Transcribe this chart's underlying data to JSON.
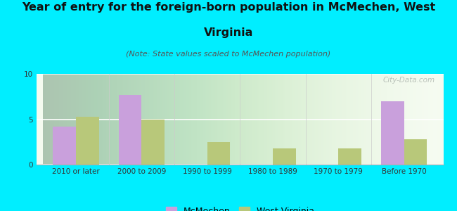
{
  "title_line1": "Year of entry for the foreign-born population in McMechen, West",
  "title_line2": "Virginia",
  "subtitle": "(Note: State values scaled to McMechen population)",
  "categories": [
    "2010 or later",
    "2000 to 2009",
    "1990 to 1999",
    "1980 to 1989",
    "1970 to 1979",
    "Before 1970"
  ],
  "mcmechen_values": [
    4.2,
    7.7,
    0,
    0,
    0,
    7.0
  ],
  "wv_values": [
    5.3,
    5.0,
    2.5,
    1.8,
    1.8,
    2.8
  ],
  "mcmechen_color": "#c9a0dc",
  "wv_color": "#b8c87a",
  "background_color": "#00eeff",
  "plot_bg_top": "#f0f8f0",
  "plot_bg_bottom": "#e0edd8",
  "ylim": [
    0,
    10
  ],
  "yticks": [
    0,
    5,
    10
  ],
  "bar_width": 0.35,
  "watermark": "City-Data.com",
  "legend_mcmechen": "McMechen",
  "legend_wv": "West Virginia",
  "title_fontsize": 11.5,
  "subtitle_fontsize": 8,
  "tick_fontsize": 7.5,
  "legend_fontsize": 9
}
